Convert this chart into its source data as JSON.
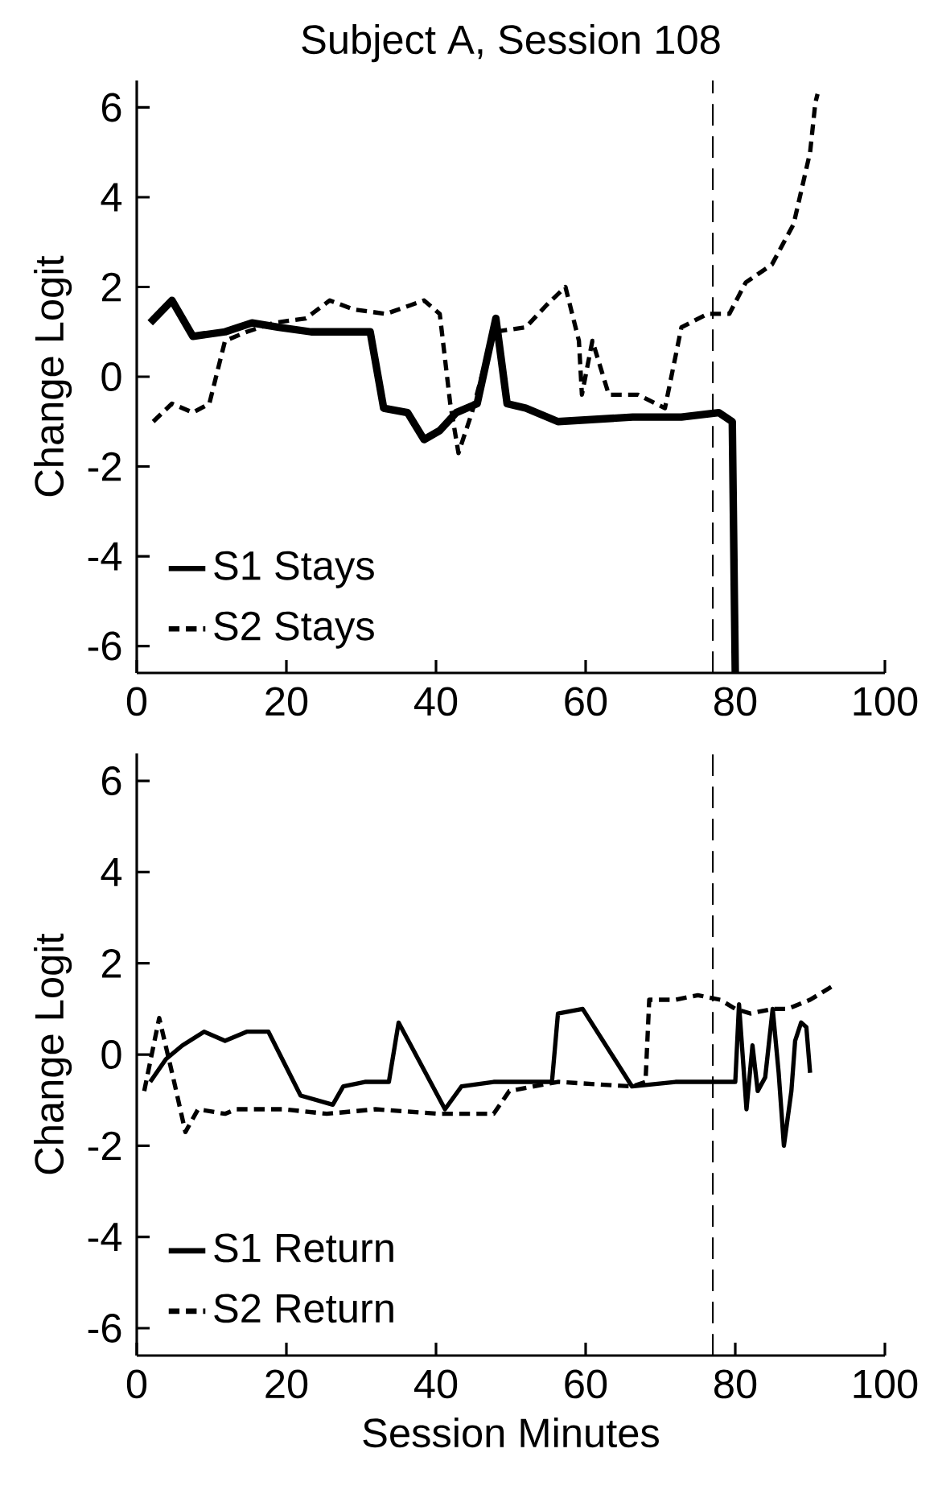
{
  "chart_data": [
    {
      "type": "line",
      "title": "Subject A, Session 108",
      "ylabel": "Change Logit",
      "xlim": [
        0,
        100
      ],
      "ylim": [
        -6.6,
        6.6
      ],
      "xticks": [
        0,
        20,
        40,
        60,
        80,
        100
      ],
      "yticks": [
        -6,
        -4,
        -2,
        0,
        2,
        4,
        6
      ],
      "grid": false,
      "legend": "bottom left",
      "marker": "none",
      "ref_lines": [
        {
          "axis": "x",
          "value": 77,
          "color": "#000000",
          "line_style": "dashed"
        }
      ],
      "series": [
        {
          "name": "S1 Stays",
          "color": "#000000",
          "line_style": "solid",
          "x": [
            1.8,
            4.7,
            7.5,
            11.8,
            15.4,
            19,
            23.3,
            31.2,
            33,
            36.2,
            38.4,
            40.5,
            42.7,
            45.5,
            48,
            49.5,
            52,
            56.3,
            66.3,
            72.8,
            77.8,
            79.6,
            80
          ],
          "values": [
            1.2,
            1.7,
            0.9,
            1.0,
            1.2,
            1.1,
            1.0,
            1.0,
            -0.7,
            -0.8,
            -1.4,
            -1.2,
            -0.8,
            -0.6,
            1.3,
            -0.6,
            -0.7,
            -1.0,
            -0.9,
            -0.9,
            -0.8,
            -1.0,
            -6.6
          ]
        },
        {
          "name": "S2 Stays",
          "color": "#000000",
          "line_style": "dashed",
          "x": [
            2.2,
            4.7,
            7.5,
            9.7,
            11.8,
            14.7,
            18.3,
            22.6,
            25.8,
            29,
            33.3,
            38.4,
            40.5,
            41.9,
            43,
            44.8,
            47.7,
            52,
            54.8,
            57.3,
            59.1,
            59.5,
            60.9,
            62,
            63.1,
            67,
            70.6,
            72.8,
            76.3,
            79.2,
            81.4,
            84.9,
            87.8,
            90,
            90.7,
            91
          ],
          "values": [
            -1.0,
            -0.6,
            -0.8,
            -0.6,
            0.8,
            1.0,
            1.2,
            1.3,
            1.7,
            1.5,
            1.4,
            1.7,
            1.4,
            -0.6,
            -1.7,
            -0.8,
            1.0,
            1.1,
            1.6,
            2.0,
            0.8,
            -0.4,
            0.8,
            0.2,
            -0.4,
            -0.4,
            -0.7,
            1.1,
            1.4,
            1.4,
            2.1,
            2.5,
            3.4,
            5.0,
            6.1,
            6.3
          ]
        }
      ]
    },
    {
      "type": "line",
      "xlabel": "Session Minutes",
      "ylabel": "Change Logit",
      "xlim": [
        0,
        100
      ],
      "ylim": [
        -6.6,
        6.6
      ],
      "xticks": [
        0,
        20,
        40,
        60,
        80,
        100
      ],
      "yticks": [
        -6,
        -4,
        -2,
        0,
        2,
        4,
        6
      ],
      "grid": false,
      "legend": "bottom left",
      "marker": "none",
      "ref_lines": [
        {
          "axis": "x",
          "value": 77,
          "color": "#000000",
          "line_style": "dashed"
        }
      ],
      "series": [
        {
          "name": "S1 Return",
          "color": "#000000",
          "line_style": "solid",
          "x": [
            1.8,
            3.9,
            6.1,
            9,
            11.8,
            14.7,
            17.6,
            21.9,
            26.2,
            27.6,
            30.5,
            33.7,
            35,
            41.2,
            43.4,
            47.7,
            52,
            55.5,
            56.3,
            59.6,
            66.2,
            72,
            78,
            80,
            80.5,
            81.5,
            82.3,
            83,
            84,
            85,
            85.8,
            86.5,
            87.5,
            88,
            88.8,
            89.5,
            90
          ],
          "values": [
            -0.6,
            -0.1,
            0.2,
            0.5,
            0.3,
            0.5,
            0.5,
            -0.9,
            -1.1,
            -0.7,
            -0.6,
            -0.6,
            0.7,
            -1.2,
            -0.7,
            -0.6,
            -0.6,
            -0.6,
            0.9,
            1.0,
            -0.7,
            -0.6,
            -0.6,
            -0.6,
            1.1,
            -1.2,
            0.2,
            -0.8,
            -0.5,
            1.0,
            -0.4,
            -2.0,
            -0.8,
            0.3,
            0.7,
            0.6,
            -0.4
          ]
        },
        {
          "name": "S2 Return",
          "color": "#000000",
          "line_style": "dashed",
          "x": [
            1,
            3,
            5,
            6.5,
            8.2,
            11.8,
            13.3,
            19.7,
            25.4,
            31.9,
            40.5,
            47.7,
            49.8,
            56.3,
            66.2,
            68,
            68.5,
            72,
            75,
            78,
            80,
            82,
            85,
            87,
            90,
            93
          ],
          "values": [
            -0.8,
            0.8,
            -0.6,
            -1.7,
            -1.2,
            -1.3,
            -1.2,
            -1.2,
            -1.3,
            -1.2,
            -1.3,
            -1.3,
            -0.8,
            -0.6,
            -0.7,
            -0.6,
            1.2,
            1.2,
            1.3,
            1.2,
            1.0,
            0.9,
            1.0,
            1.0,
            1.2,
            1.5
          ]
        }
      ]
    }
  ]
}
